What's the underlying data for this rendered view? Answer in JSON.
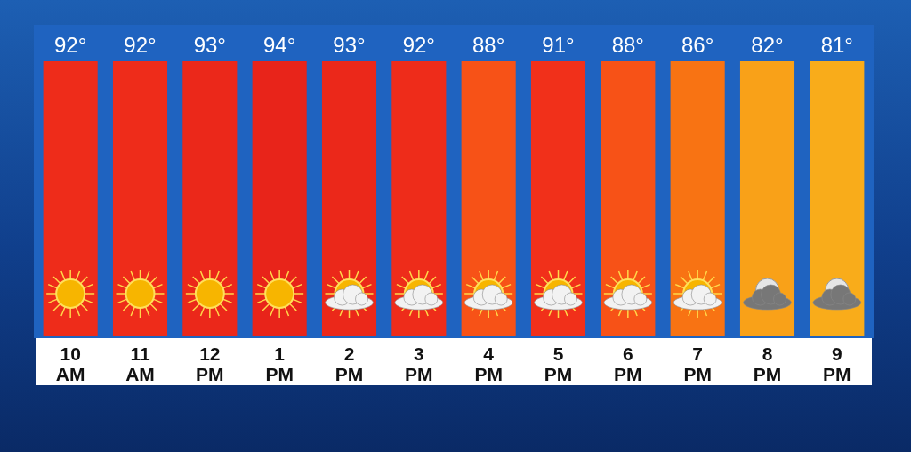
{
  "chart_data": {
    "type": "heatmap",
    "categories": [
      "10\nAM",
      "11\nAM",
      "12\nPM",
      "1\nPM",
      "2\nPM",
      "3\nPM",
      "4\nPM",
      "5\nPM",
      "6\nPM",
      "7\nPM",
      "8\nPM",
      "9\nPM"
    ],
    "y_categories": [
      null
    ],
    "cells": [
      [
        92,
        92,
        93,
        94,
        93,
        92,
        88,
        91,
        88,
        86,
        82,
        81
      ]
    ],
    "cell_labels": [
      [
        "92°",
        "92°",
        "93°",
        "94°",
        "93°",
        "92°",
        "88°",
        "91°",
        "88°",
        "86°",
        "82°",
        "81°"
      ]
    ]
  }
}
